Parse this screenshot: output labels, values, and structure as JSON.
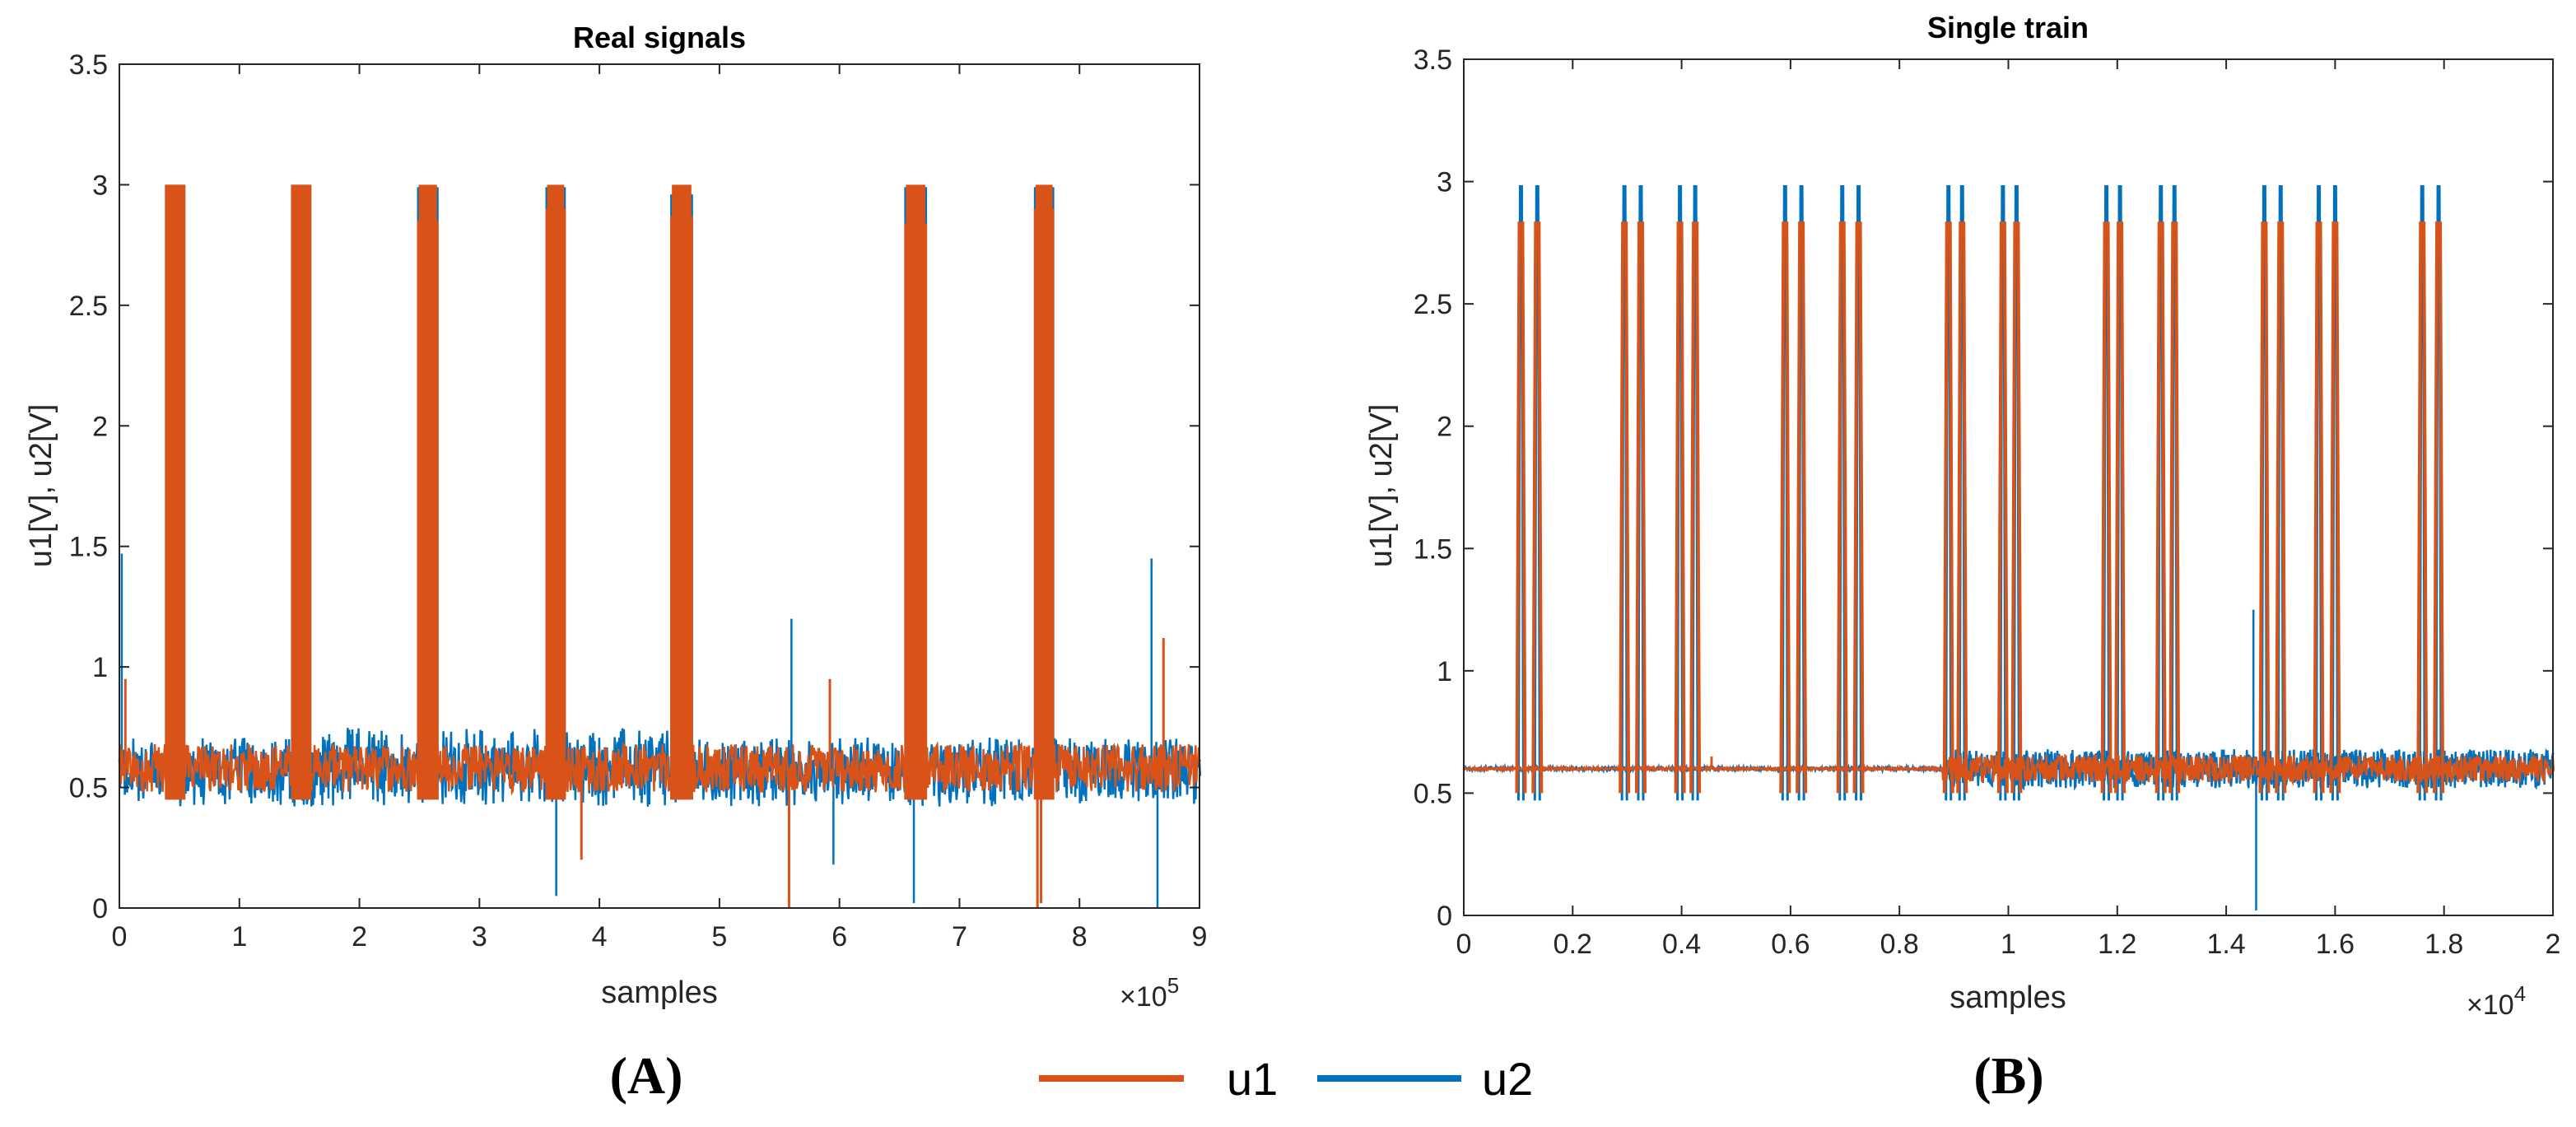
{
  "chart_data": [
    {
      "type": "line",
      "panel_label": "(A)",
      "title": "Real signals",
      "xlabel": "samples",
      "ylabel": "u1[V], u2[V]",
      "x_multiplier_base": "×10",
      "x_multiplier_exp": "5",
      "xlim": [
        0,
        9
      ],
      "ylim": [
        0,
        3.5
      ],
      "xticks": [
        0,
        1,
        2,
        3,
        4,
        5,
        6,
        7,
        8,
        9
      ],
      "xtick_labels": [
        "0",
        "1",
        "2",
        "3",
        "4",
        "5",
        "6",
        "7",
        "8",
        "9"
      ],
      "yticks": [
        0,
        0.5,
        1,
        1.5,
        2,
        2.5,
        3,
        3.5
      ],
      "ytick_labels": [
        "0",
        "0.5",
        "1",
        "1.5",
        "2",
        "2.5",
        "3",
        "3.5"
      ],
      "baseline": 0.58,
      "bursts": [
        {
          "start": 0.38,
          "end": 0.55,
          "u1_top": 3.0,
          "u2_top": 3.0
        },
        {
          "start": 1.43,
          "end": 1.6,
          "u1_top": 3.0,
          "u2_top": 3.0
        },
        {
          "start": 2.48,
          "end": 2.66,
          "u1_top": 2.85,
          "u2_top": 2.99
        },
        {
          "start": 3.55,
          "end": 3.72,
          "u1_top": 2.9,
          "u2_top": 2.99
        },
        {
          "start": 4.59,
          "end": 4.78,
          "u1_top": 2.87,
          "u2_top": 2.96
        },
        {
          "start": 6.54,
          "end": 6.73,
          "u1_top": 2.84,
          "u2_top": 2.99
        },
        {
          "start": 7.62,
          "end": 7.79,
          "u1_top": 2.9,
          "u2_top": 2.99
        }
      ],
      "series": [
        {
          "name": "u2",
          "color": "#0072BD",
          "spikes": [
            [
              0.02,
              1.47
            ],
            [
              3.64,
              0.05
            ],
            [
              5.6,
              1.2
            ],
            [
              5.95,
              0.18
            ],
            [
              6.62,
              0.02
            ],
            [
              8.6,
              1.45
            ],
            [
              8.65,
              0.0
            ],
            [
              8.7,
              1.12
            ]
          ]
        },
        {
          "name": "u1",
          "color": "#D95319",
          "spikes": [
            [
              0.05,
              0.95
            ],
            [
              3.85,
              0.2
            ],
            [
              5.58,
              0.0
            ],
            [
              5.92,
              0.95
            ],
            [
              7.65,
              0.0
            ],
            [
              7.68,
              0.02
            ],
            [
              8.7,
              1.12
            ]
          ]
        }
      ]
    },
    {
      "type": "line",
      "panel_label": "(B)",
      "title": "Single train",
      "xlabel": "samples",
      "ylabel": "u1[V], u2[V]",
      "x_multiplier_base": "×10",
      "x_multiplier_exp": "4",
      "xlim": [
        0,
        2
      ],
      "ylim": [
        0,
        3.5
      ],
      "xticks": [
        0,
        0.2,
        0.4,
        0.6,
        0.8,
        1,
        1.2,
        1.4,
        1.6,
        1.8,
        2
      ],
      "xtick_labels": [
        "0",
        "0.2",
        "0.4",
        "0.6",
        "0.8",
        "1",
        "1.2",
        "1.4",
        "1.6",
        "1.8",
        "2"
      ],
      "yticks": [
        0,
        0.5,
        1,
        1.5,
        2,
        2.5,
        3,
        3.5
      ],
      "ytick_labels": [
        "0",
        "0.5",
        "1",
        "1.5",
        "2",
        "2.5",
        "3",
        "3.5"
      ],
      "baseline": 0.6,
      "pulses": [
        0.105,
        0.135,
        0.295,
        0.325,
        0.397,
        0.425,
        0.59,
        0.62,
        0.695,
        0.725,
        0.89,
        0.915,
        0.99,
        1.015,
        1.18,
        1.205,
        1.28,
        1.305,
        1.47,
        1.5,
        1.57,
        1.6,
        1.76,
        1.79
      ],
      "u2_pulse_top": 2.98,
      "u1_pulse_top": 2.83,
      "noise_start": 0.88,
      "series": [
        {
          "name": "u2",
          "color": "#0072BD",
          "spikes": [
            [
              1.45,
              1.25
            ],
            [
              1.455,
              0.02
            ]
          ]
        },
        {
          "name": "u1",
          "color": "#D95319",
          "spikes": [
            [
              0.455,
              0.65
            ]
          ]
        }
      ]
    }
  ],
  "legend": {
    "entries": [
      {
        "name": "u1",
        "color": "#D95319"
      },
      {
        "name": "u2",
        "color": "#0072BD"
      }
    ]
  }
}
